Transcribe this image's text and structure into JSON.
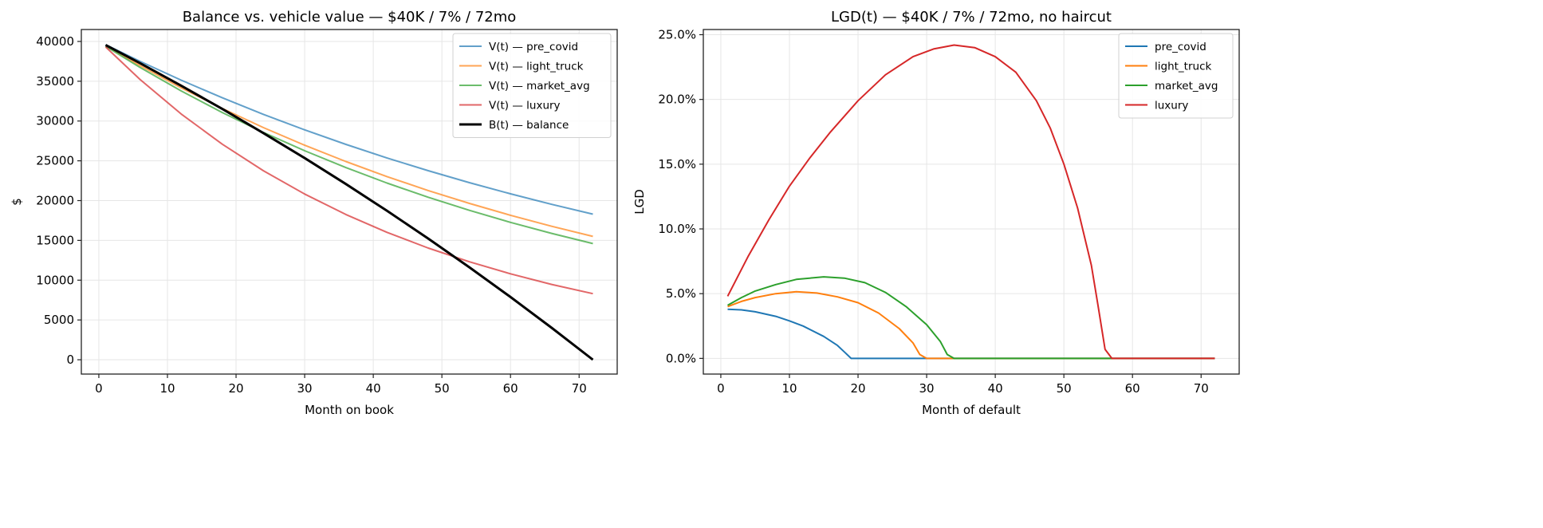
{
  "chart_data": [
    {
      "type": "line",
      "title": "Balance vs. vehicle value — $40K / 7% / 72mo",
      "xlabel": "Month on book",
      "ylabel": "$",
      "xlim": [
        -2.55,
        75.55
      ],
      "ylim": [
        -1800,
        41500
      ],
      "xticks": [
        0,
        10,
        20,
        30,
        40,
        50,
        60,
        70
      ],
      "yticks": [
        0,
        5000,
        10000,
        15000,
        20000,
        25000,
        30000,
        35000,
        40000
      ],
      "ytick_labels": [
        "0",
        "5000",
        "10000",
        "15000",
        "20000",
        "25000",
        "30000",
        "35000",
        "40000"
      ],
      "grid": true,
      "legend_position": "top-right",
      "x": [
        1,
        6,
        12,
        18,
        24,
        30,
        36,
        42,
        48,
        54,
        60,
        66,
        72
      ],
      "series": [
        {
          "name": "V(t) — pre_covid",
          "color": "#1f77b4",
          "opacity": 0.7,
          "width": 2,
          "values": [
            39600,
            37504,
            35136,
            32917,
            30838,
            28892,
            27066,
            25357,
            23756,
            22255,
            20850,
            19533,
            18300
          ]
        },
        {
          "name": "V(t) — light_truck",
          "color": "#ff7f0e",
          "opacity": 0.7,
          "width": 2,
          "values": [
            39500,
            36981,
            34170,
            31573,
            29174,
            26956,
            24908,
            23014,
            21264,
            19648,
            18155,
            16774,
            15500
          ]
        },
        {
          "name": "V(t) — market_avg",
          "color": "#2ca02c",
          "opacity": 0.7,
          "width": 2,
          "values": [
            39400,
            36739,
            33783,
            31064,
            28564,
            26266,
            24152,
            22208,
            20421,
            18778,
            17266,
            15877,
            14600
          ]
        },
        {
          "name": "V(t) — luxury",
          "color": "#d62728",
          "opacity": 0.7,
          "width": 2,
          "values": [
            39300,
            35224,
            30888,
            27085,
            23748,
            20824,
            18260,
            16012,
            14039,
            12311,
            10795,
            9465,
            8300
          ]
        },
        {
          "name": "B(t) — balance",
          "color": "#000000",
          "opacity": 1,
          "width": 3,
          "values": [
            39551,
            37269,
            34440,
            31512,
            28479,
            25338,
            22086,
            18719,
            15232,
            11621,
            7881,
            4010,
            0
          ]
        }
      ]
    },
    {
      "type": "line",
      "title": "LGD(t) — $40K / 7% / 72mo, no haircut",
      "xlabel": "Month of default",
      "ylabel": "LGD",
      "xlim": [
        -2.55,
        75.55
      ],
      "ylim": [
        -1.21,
        25.4
      ],
      "xticks": [
        0,
        10,
        20,
        30,
        40,
        50,
        60,
        70
      ],
      "yticks": [
        0,
        5,
        10,
        15,
        20,
        25
      ],
      "ytick_labels": [
        "0.0%",
        "5.0%",
        "10.0%",
        "15.0%",
        "20.0%",
        "25.0%"
      ],
      "grid": true,
      "legend_position": "top-right",
      "series": [
        {
          "name": "pre_covid",
          "color": "#1f77b4",
          "x": [
            1,
            3,
            5,
            8,
            10,
            12,
            15,
            17,
            18,
            19,
            72
          ],
          "values": [
            3.8,
            3.75,
            3.6,
            3.25,
            2.9,
            2.5,
            1.7,
            1.0,
            0.5,
            0,
            0
          ]
        },
        {
          "name": "light_truck",
          "color": "#ff7f0e",
          "x": [
            1,
            3,
            5,
            8,
            11,
            14,
            17,
            20,
            23,
            26,
            28,
            29,
            30,
            72
          ],
          "values": [
            4.0,
            4.4,
            4.7,
            5.0,
            5.15,
            5.05,
            4.75,
            4.3,
            3.5,
            2.3,
            1.2,
            0.3,
            0,
            0
          ]
        },
        {
          "name": "market_avg",
          "color": "#2ca02c",
          "x": [
            1,
            3,
            5,
            8,
            11,
            15,
            18,
            21,
            24,
            27,
            30,
            32,
            33,
            34,
            72
          ],
          "values": [
            4.1,
            4.7,
            5.2,
            5.7,
            6.1,
            6.3,
            6.2,
            5.85,
            5.1,
            4.0,
            2.6,
            1.3,
            0.3,
            0,
            0
          ]
        },
        {
          "name": "luxury",
          "color": "#d62728",
          "x": [
            1,
            4,
            7,
            10,
            13,
            16,
            20,
            24,
            28,
            31,
            34,
            37,
            40,
            43,
            46,
            48,
            50,
            52,
            54,
            55,
            56,
            57,
            72
          ],
          "values": [
            4.8,
            7.9,
            10.7,
            13.3,
            15.5,
            17.5,
            19.9,
            21.9,
            23.3,
            23.9,
            24.2,
            24.0,
            23.3,
            22.1,
            19.9,
            17.8,
            15.0,
            11.6,
            7.2,
            4.0,
            0.7,
            0,
            0
          ]
        }
      ]
    }
  ]
}
